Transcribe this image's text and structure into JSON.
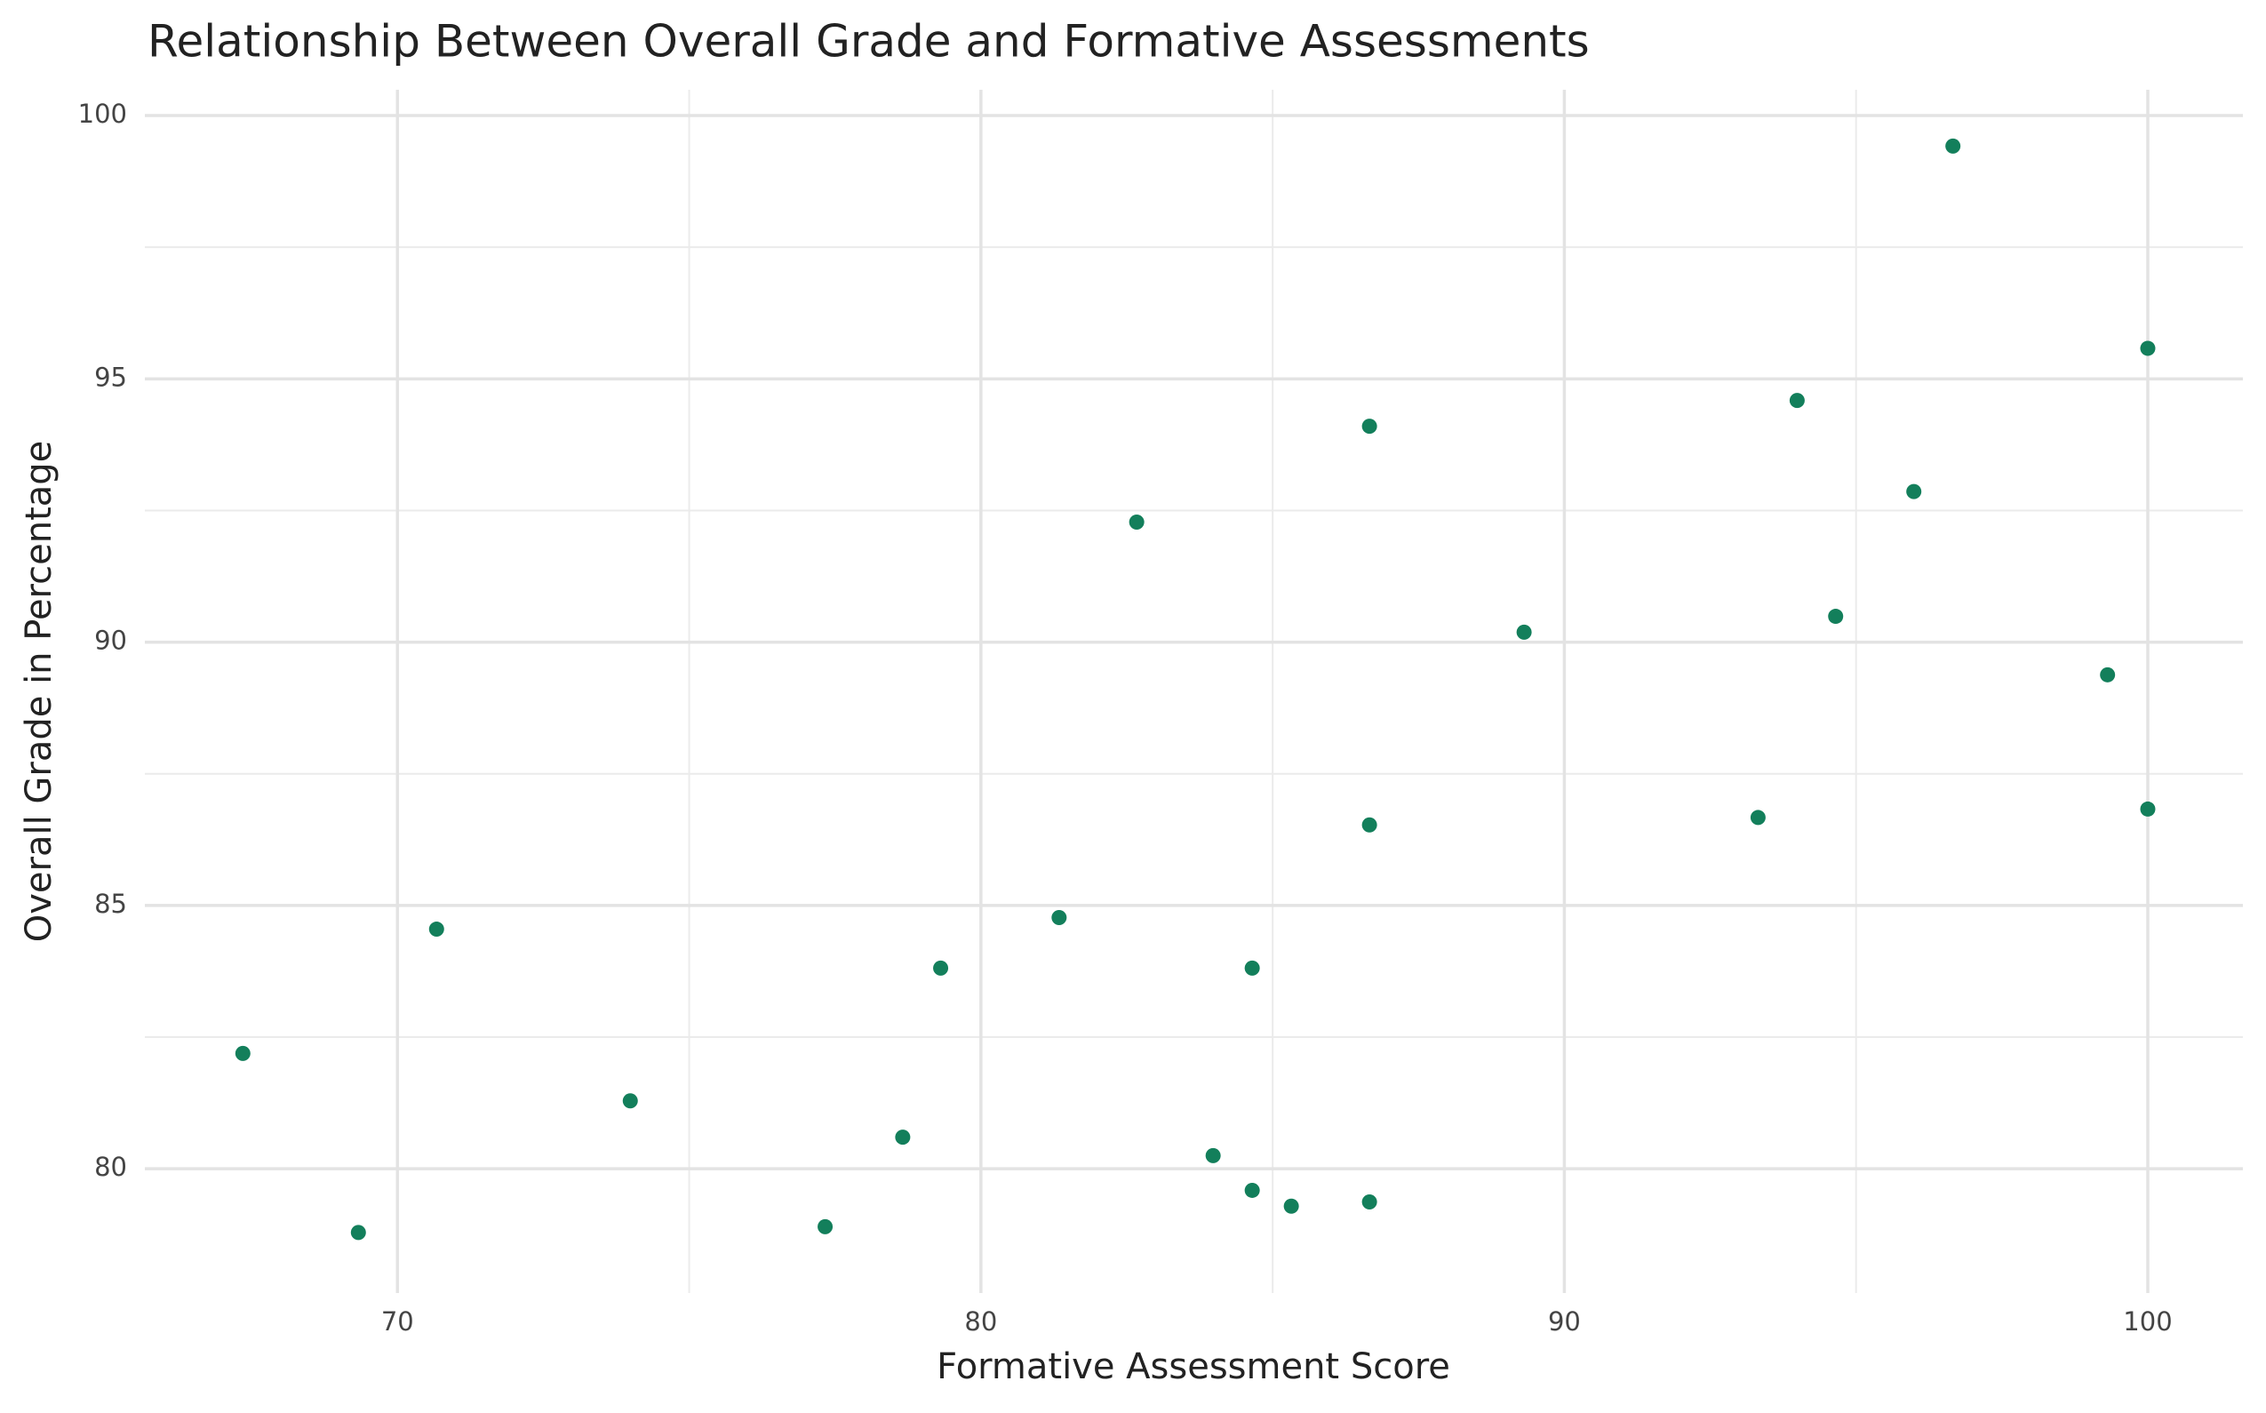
{
  "chart_data": {
    "type": "scatter",
    "title": "Relationship Between Overall Grade and Formative Assessments",
    "x_label": "Formative Assessment Score",
    "y_label": "Overall Grade in Percentage",
    "color": "#137f5b",
    "grid": true,
    "xlim": [
      65.67,
      101.63
    ],
    "ylim": [
      77.64,
      100.49
    ],
    "xticks": [
      70,
      80,
      90,
      100
    ],
    "yticks": [
      80,
      85,
      90,
      95,
      100
    ],
    "x_minor_grid": [
      75,
      85,
      95
    ],
    "y_minor_grid": [
      82.5,
      87.5,
      92.5,
      97.5
    ],
    "x": [
      67.35,
      69.33,
      70.67,
      73.99,
      77.33,
      78.66,
      79.31,
      81.34,
      82.67,
      83.98,
      84.65,
      84.65,
      85.32,
      86.66,
      86.66,
      86.66,
      89.31,
      93.32,
      93.99,
      94.65,
      95.99,
      96.66,
      99.31,
      100,
      100
    ],
    "values": [
      82.19,
      78.79,
      84.55,
      81.29,
      78.9,
      80.6,
      83.81,
      84.77,
      92.28,
      80.25,
      83.81,
      79.59,
      79.29,
      79.37,
      86.53,
      94.1,
      90.19,
      86.67,
      94.59,
      90.49,
      92.86,
      99.42,
      89.38,
      86.83,
      95.58
    ]
  }
}
